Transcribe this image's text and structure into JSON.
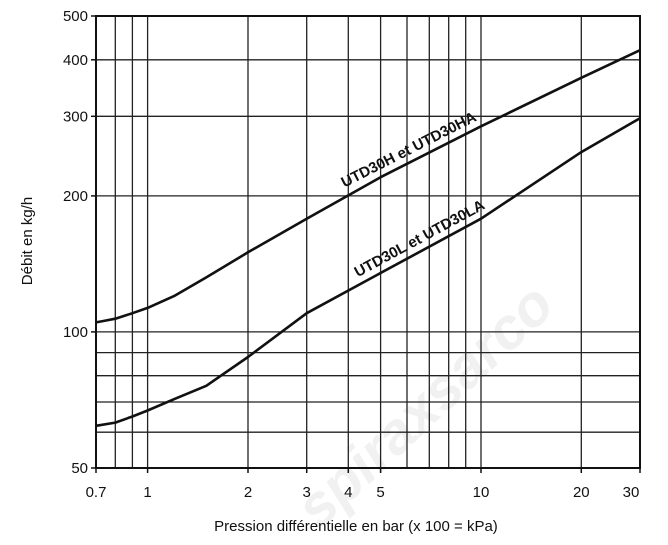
{
  "chart_data": {
    "type": "line",
    "title": "",
    "xlabel": "Pression différentielle en bar (x 100 = kPa)",
    "ylabel": "Débit en kg/h",
    "x_scale": "log",
    "y_scale": "log",
    "xlim": [
      0.7,
      30
    ],
    "ylim": [
      50,
      500
    ],
    "x_ticks": [
      {
        "value": 0.7,
        "label": "0.7"
      },
      {
        "value": 1,
        "label": "1"
      },
      {
        "value": 2,
        "label": "2"
      },
      {
        "value": 3,
        "label": "3"
      },
      {
        "value": 4,
        "label": "4"
      },
      {
        "value": 5,
        "label": "5"
      },
      {
        "value": 10,
        "label": "10"
      },
      {
        "value": 20,
        "label": "20"
      },
      {
        "value": 30,
        "label": "30"
      }
    ],
    "y_ticks": [
      {
        "value": 50,
        "label": "50"
      },
      {
        "value": 100,
        "label": "100"
      },
      {
        "value": 200,
        "label": "200"
      },
      {
        "value": 300,
        "label": "300"
      },
      {
        "value": 400,
        "label": "400"
      },
      {
        "value": 500,
        "label": "500"
      }
    ],
    "x_grid": [
      0.7,
      0.8,
      0.9,
      1,
      2,
      3,
      4,
      5,
      6,
      7,
      8,
      9,
      10,
      20,
      30
    ],
    "y_grid": [
      50,
      60,
      70,
      80,
      90,
      100,
      200,
      300,
      400,
      500
    ],
    "grid": true,
    "series": [
      {
        "name": "UTD30H  et  UTD30HA",
        "x": [
          0.7,
          0.75,
          0.8,
          0.9,
          1,
          1.2,
          1.5,
          2,
          3,
          5,
          10,
          20,
          30
        ],
        "y": [
          105,
          106,
          107,
          110,
          113,
          120,
          132,
          150,
          178,
          220,
          285,
          365,
          420
        ]
      },
      {
        "name": "UTD30L  et  UTD30LA",
        "x": [
          0.7,
          0.8,
          0.9,
          1,
          1.2,
          1.5,
          2,
          3,
          5,
          10,
          20,
          30
        ],
        "y": [
          62,
          63,
          65,
          67,
          71,
          76,
          88,
          110,
          135,
          178,
          250,
          297
        ]
      }
    ]
  },
  "watermark": "spiraxsarco"
}
